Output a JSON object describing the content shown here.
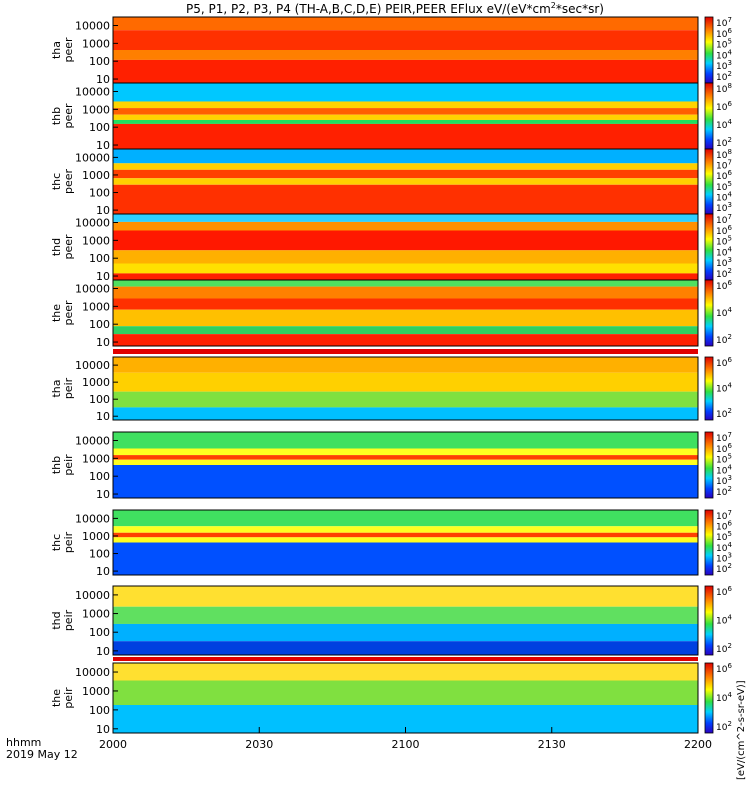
{
  "chart_data": {
    "type": "heatmap",
    "title": "P5, P1, P2, P3, P4 (TH-A,B,C,D,E) PEIR,PEER EFlux eV/(eV*cm^2*sec*sr)",
    "title_parts": [
      "P5, P1, P2, P3, P4 (TH-A,B,C,D,E) PEIR,PEER EFlux eV/(eV*cm",
      "2",
      "*sec*sr)"
    ],
    "x_tick_labels": [
      "2000",
      "2030",
      "2100",
      "2130",
      "2200"
    ],
    "x_corner_labels": [
      "hhmm",
      "2019 May 12"
    ],
    "y_tick_labels": [
      "10000",
      "1000",
      "100",
      "10"
    ],
    "y_scale": "log",
    "ylim": [
      6,
      30000
    ],
    "colorbar_unit_label": "[eV/(cm^2-s-sr-eV)]",
    "panels": [
      {
        "name": "tha-peer",
        "label": [
          "tha",
          "peer"
        ],
        "colorbar_ticks": [
          "10^7",
          "10^6",
          "10^5",
          "10^4",
          "10^3",
          "10^2"
        ]
      },
      {
        "name": "thb-peer",
        "label": [
          "thb",
          "peer"
        ],
        "colorbar_ticks": [
          "10^8",
          "10^6",
          "10^4",
          "10^2"
        ]
      },
      {
        "name": "thc-peer",
        "label": [
          "thc",
          "peer"
        ],
        "colorbar_ticks": [
          "10^8",
          "10^7",
          "10^6",
          "10^5",
          "10^4",
          "10^3"
        ]
      },
      {
        "name": "thd-peer",
        "label": [
          "thd",
          "peer"
        ],
        "colorbar_ticks": [
          "10^7",
          "10^6",
          "10^5",
          "10^4",
          "10^3",
          "10^2"
        ]
      },
      {
        "name": "the-peer",
        "label": [
          "the",
          "peer"
        ],
        "colorbar_ticks": [
          "10^6",
          "10^4",
          "10^2"
        ]
      },
      {
        "name": "tha-peir",
        "label": [
          "tha",
          "peir"
        ],
        "colorbar_ticks": [
          "10^6",
          "10^4",
          "10^2"
        ]
      },
      {
        "name": "thb-peir",
        "label": [
          "thb",
          "peir"
        ],
        "colorbar_ticks": [
          "10^7",
          "10^6",
          "10^5",
          "10^4",
          "10^3",
          "10^2"
        ]
      },
      {
        "name": "thc-peir",
        "label": [
          "thc",
          "peir"
        ],
        "colorbar_ticks": [
          "10^7",
          "10^6",
          "10^5",
          "10^4",
          "10^3",
          "10^2"
        ]
      },
      {
        "name": "thd-peir",
        "label": [
          "thd",
          "peir"
        ],
        "colorbar_ticks": [
          "10^6",
          "10^4",
          "10^2"
        ]
      },
      {
        "name": "the-peir",
        "label": [
          "the",
          "peir"
        ],
        "colorbar_ticks": [
          "10^6",
          "10^4",
          "10^2"
        ]
      }
    ]
  }
}
